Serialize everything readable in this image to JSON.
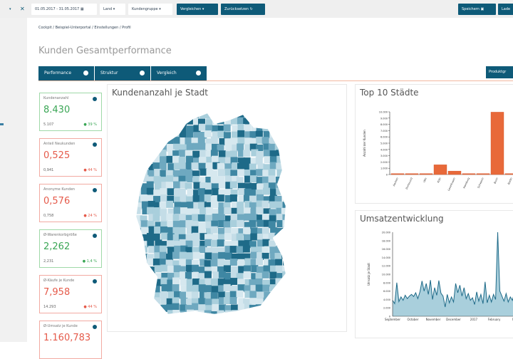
{
  "topbar": {
    "date_range": "01.05.2017 - 31.05.2017",
    "land": "Land",
    "kundengruppe": "Kundengruppe",
    "vergleichen": "Vergleichen",
    "zuruecksetzen": "Zurücksetzen",
    "speichern": "Speichern",
    "laden": "Lade"
  },
  "breadcrumb": "Cockpit / Beispiel-Unterportal / Einstellungen / Profil",
  "page_title": "Kunden Gesamtperformance",
  "tabs": [
    {
      "label": "Performance"
    },
    {
      "label": "Struktur"
    },
    {
      "label": "Vergleich"
    }
  ],
  "produkt_button": "Produktgr",
  "kpis": [
    {
      "label": "Kundenanzahl",
      "value": "8.430",
      "previous": "5.107",
      "change": "39 %",
      "trend": "up",
      "status": "good"
    },
    {
      "label": "Anteil Neukunden",
      "value": "0,525",
      "previous": "0,941",
      "change": "44 %",
      "trend": "down",
      "status": "bad"
    },
    {
      "label": "Anonyme Kunden",
      "value": "0,576",
      "previous": "0,758",
      "change": "24 %",
      "trend": "down",
      "status": "bad"
    },
    {
      "label": "Ø-Warenkorbgröße",
      "value": "2,262",
      "previous": "2,231",
      "change": "1,4 %",
      "trend": "up",
      "status": "good"
    },
    {
      "label": "Ø-Käufe je Kunde",
      "value": "7,958",
      "previous": "14.293",
      "change": "44 %",
      "trend": "down",
      "status": "bad"
    },
    {
      "label": "Ø-Umsatz je Kunde",
      "value": "1.160,783",
      "previous": "",
      "change": "",
      "trend": "",
      "status": "bad"
    }
  ],
  "map": {
    "title": "Kundenanzahl je Stadt"
  },
  "colors": {
    "primary": "#0e5a78",
    "bar": "#e8693a",
    "good": "#3aa655",
    "bad": "#e55a4a",
    "area": "#a9cfdc"
  },
  "chart_data": [
    {
      "type": "bar",
      "title": "Top 10 Städte",
      "ylabel": "Anzahl der Kunden",
      "ylim": [
        0,
        10000
      ],
      "yticks": [
        "0",
        "1.000",
        "2.000",
        "3.000",
        "4.000",
        "5.000",
        "6.000",
        "7.000",
        "8.000",
        "9.000",
        "10.000"
      ],
      "categories": [
        "Aachen",
        "Dortmund",
        "Ulm",
        "Köln",
        "Leverkusen",
        "Hamburg",
        "Schwerin",
        "Bonn",
        "Berlin"
      ],
      "values": [
        150,
        150,
        150,
        1550,
        550,
        150,
        150,
        9950,
        150
      ]
    },
    {
      "type": "area",
      "title": "Umsatzentwicklung",
      "ylabel": "Umsatz je Stadt",
      "ylim": [
        0,
        20000
      ],
      "yticks": [
        "0",
        "2.000",
        "4.000",
        "6.000",
        "8.000",
        "10.000",
        "12.000",
        "14.000",
        "16.000",
        "18.000",
        "20.000"
      ],
      "xticks": [
        "September",
        "October",
        "November",
        "December",
        "2017",
        "February",
        "Ma"
      ],
      "values": [
        3800,
        3000,
        8000,
        3500,
        4600,
        3800,
        5000,
        4200,
        4800,
        5200,
        4700,
        5600,
        4200,
        5800,
        8400,
        6000,
        7800,
        5200,
        8600,
        4000,
        6800,
        5000,
        8500,
        5500,
        4800,
        2200,
        5200,
        3200,
        4600,
        3400,
        7800,
        5600,
        7400,
        4800,
        6800,
        4200,
        5400,
        3800,
        4400,
        2800,
        5800,
        3600,
        5200,
        3000,
        8200,
        3200,
        5000,
        3400,
        5200,
        4000,
        20000,
        6000,
        4800,
        3600,
        5400,
        3400,
        4600,
        3800,
        5800,
        3600,
        3200,
        3400
      ]
    }
  ]
}
